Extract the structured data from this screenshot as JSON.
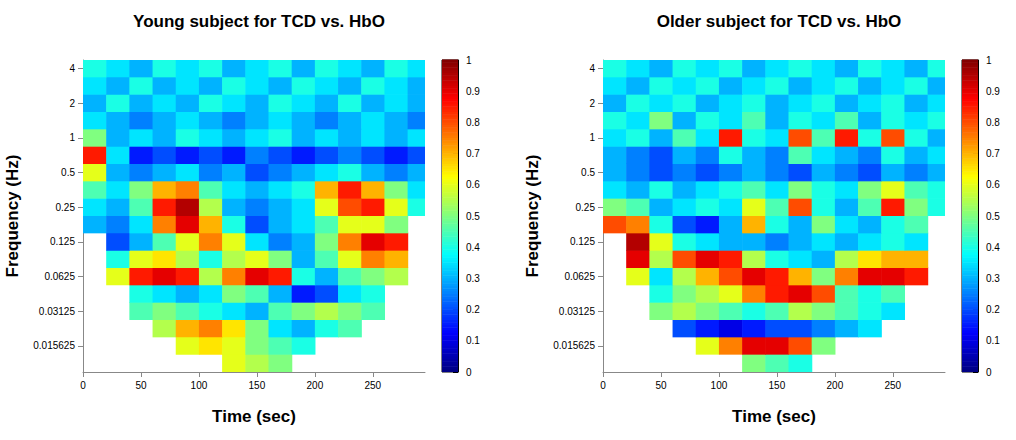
{
  "chart_data": [
    {
      "type": "heatmap",
      "title": "Young subject for TCD vs. HbO",
      "x_label": "Time (sec)",
      "y_label": "Frequency (Hz)",
      "log": "y",
      "xlim": [
        0,
        295
      ],
      "ylim": [
        0.00929,
        4.75683
      ],
      "xticks": [
        0,
        50,
        100,
        150,
        200,
        250
      ],
      "yticks": [
        0.015625,
        0.03125,
        0.0625,
        0.125,
        0.25,
        0.5,
        1,
        2,
        4
      ],
      "x_bins": [
        0,
        20,
        40,
        60,
        80,
        100,
        120,
        140,
        160,
        180,
        200,
        220,
        240,
        260,
        280,
        295
      ],
      "y_bins": [
        0.00929,
        0.01314,
        0.01858,
        0.02628,
        0.03716,
        0.05256,
        0.07433,
        0.10511,
        0.14865,
        0.21022,
        0.2973,
        0.42045,
        0.5946,
        0.8409,
        1.18921,
        1.68179,
        2.37841,
        3.36359,
        4.75683
      ],
      "cells": [
        [
          null,
          null,
          null,
          null,
          null,
          null,
          0.6,
          0.55,
          0.5,
          null,
          null,
          null,
          null,
          null,
          null
        ],
        [
          null,
          null,
          null,
          null,
          0.6,
          0.65,
          0.6,
          0.5,
          0.45,
          0.4,
          null,
          null,
          null,
          null,
          null
        ],
        [
          null,
          null,
          null,
          0.55,
          0.7,
          0.75,
          0.65,
          0.5,
          0.35,
          0.3,
          0.4,
          0.45,
          null,
          null,
          null
        ],
        [
          null,
          null,
          0.45,
          0.5,
          0.45,
          0.4,
          0.35,
          0.3,
          0.45,
          0.5,
          0.55,
          0.5,
          0.45,
          null,
          null
        ],
        [
          null,
          null,
          0.4,
          0.35,
          0.3,
          0.35,
          0.5,
          0.45,
          0.3,
          0.15,
          0.2,
          0.35,
          0.4,
          null,
          null
        ],
        [
          null,
          0.6,
          0.85,
          0.9,
          0.85,
          0.55,
          0.75,
          0.9,
          0.85,
          0.4,
          0.3,
          0.45,
          0.5,
          0.55,
          null
        ],
        [
          null,
          0.4,
          0.6,
          0.65,
          0.55,
          0.4,
          0.55,
          0.6,
          0.5,
          0.3,
          0.45,
          0.6,
          0.75,
          0.7,
          null
        ],
        [
          null,
          0.2,
          0.3,
          0.45,
          0.6,
          0.75,
          0.6,
          0.35,
          0.25,
          0.3,
          0.5,
          0.75,
          0.9,
          0.85,
          null
        ],
        [
          0.3,
          0.25,
          0.35,
          0.75,
          0.9,
          0.7,
          0.4,
          0.2,
          0.3,
          0.35,
          0.45,
          0.6,
          0.6,
          0.5,
          null
        ],
        [
          0.35,
          0.3,
          0.45,
          0.85,
          0.95,
          0.55,
          0.3,
          0.25,
          0.3,
          0.35,
          0.6,
          0.8,
          0.85,
          0.6,
          0.4
        ],
        [
          0.45,
          0.35,
          0.5,
          0.7,
          0.75,
          0.45,
          0.35,
          0.3,
          0.35,
          0.4,
          0.7,
          0.85,
          0.7,
          0.5,
          0.35
        ],
        [
          0.6,
          0.3,
          0.25,
          0.3,
          0.35,
          0.25,
          0.3,
          0.2,
          0.25,
          0.3,
          0.35,
          0.4,
          0.3,
          0.25,
          0.3
        ],
        [
          0.85,
          0.35,
          0.15,
          0.2,
          0.15,
          0.2,
          0.15,
          0.25,
          0.2,
          0.15,
          0.2,
          0.25,
          0.2,
          0.15,
          0.2
        ],
        [
          0.5,
          0.3,
          0.35,
          0.3,
          0.4,
          0.35,
          0.3,
          0.35,
          0.4,
          0.3,
          0.35,
          0.3,
          0.35,
          0.3,
          0.35
        ],
        [
          0.35,
          0.3,
          0.25,
          0.3,
          0.35,
          0.3,
          0.25,
          0.3,
          0.35,
          0.3,
          0.25,
          0.3,
          0.35,
          0.3,
          0.25
        ],
        [
          0.3,
          0.4,
          0.3,
          0.35,
          0.3,
          0.4,
          0.35,
          0.3,
          0.4,
          0.35,
          0.3,
          0.4,
          0.3,
          0.35,
          0.3
        ],
        [
          0.35,
          0.3,
          0.4,
          0.3,
          0.35,
          0.3,
          0.4,
          0.35,
          0.3,
          0.4,
          0.35,
          0.3,
          0.4,
          0.35,
          0.3
        ],
        [
          0.4,
          0.35,
          0.3,
          0.4,
          0.35,
          0.4,
          0.3,
          0.35,
          0.4,
          0.3,
          0.4,
          0.35,
          0.3,
          0.4,
          0.35
        ]
      ],
      "colorbar_range": [
        0,
        1
      ],
      "colorbar_ticks": [
        0,
        0.1,
        0.2,
        0.3,
        0.4,
        0.5,
        0.6,
        0.7,
        0.8,
        0.9,
        1
      ]
    },
    {
      "type": "heatmap",
      "title": "Older subject for TCD vs. HbO",
      "x_label": "Time (sec)",
      "y_label": "Frequency (Hz)",
      "log": "y",
      "xlim": [
        0,
        295
      ],
      "ylim": [
        0.00929,
        4.75683
      ],
      "xticks": [
        0,
        50,
        100,
        150,
        200,
        250
      ],
      "yticks": [
        0.015625,
        0.03125,
        0.0625,
        0.125,
        0.25,
        0.5,
        1,
        2,
        4
      ],
      "x_bins": [
        0,
        20,
        40,
        60,
        80,
        100,
        120,
        140,
        160,
        180,
        200,
        220,
        240,
        260,
        280,
        295
      ],
      "y_bins": [
        0.00929,
        0.01314,
        0.01858,
        0.02628,
        0.03716,
        0.05256,
        0.07433,
        0.10511,
        0.14865,
        0.21022,
        0.2973,
        0.42045,
        0.5946,
        0.8409,
        1.18921,
        1.68179,
        2.37841,
        3.36359,
        4.75683
      ],
      "cells": [
        [
          null,
          null,
          null,
          null,
          null,
          null,
          0.5,
          0.45,
          0.4,
          null,
          null,
          null,
          null,
          null,
          null
        ],
        [
          null,
          null,
          null,
          null,
          0.6,
          0.75,
          0.9,
          0.9,
          0.8,
          0.5,
          null,
          null,
          null,
          null,
          null
        ],
        [
          null,
          null,
          null,
          0.2,
          0.15,
          0.1,
          0.15,
          0.2,
          0.2,
          0.25,
          0.3,
          0.35,
          null,
          null,
          null
        ],
        [
          null,
          null,
          0.5,
          0.55,
          0.5,
          0.45,
          0.4,
          0.45,
          0.55,
          0.5,
          0.45,
          0.4,
          0.35,
          null,
          null
        ],
        [
          null,
          null,
          0.4,
          0.5,
          0.55,
          0.6,
          0.75,
          0.85,
          0.9,
          0.8,
          0.45,
          0.4,
          0.45,
          null,
          null
        ],
        [
          null,
          0.6,
          0.35,
          0.55,
          0.7,
          0.8,
          0.9,
          0.85,
          0.7,
          0.5,
          0.75,
          0.9,
          0.9,
          0.85,
          null
        ],
        [
          null,
          0.9,
          0.55,
          0.8,
          0.9,
          0.85,
          0.55,
          0.4,
          0.35,
          0.3,
          0.55,
          0.65,
          0.7,
          0.7,
          null
        ],
        [
          null,
          0.95,
          0.6,
          0.4,
          0.35,
          0.3,
          0.3,
          0.25,
          0.3,
          0.35,
          0.3,
          0.35,
          0.4,
          0.35,
          null
        ],
        [
          0.8,
          0.75,
          0.4,
          0.2,
          0.15,
          0.3,
          0.7,
          0.4,
          0.3,
          0.5,
          0.35,
          0.3,
          0.4,
          0.45,
          null
        ],
        [
          0.5,
          0.45,
          0.3,
          0.35,
          0.4,
          0.35,
          0.6,
          0.45,
          0.8,
          0.4,
          0.3,
          0.45,
          0.85,
          0.5,
          0.4
        ],
        [
          0.35,
          0.3,
          0.4,
          0.3,
          0.35,
          0.4,
          0.45,
          0.35,
          0.5,
          0.4,
          0.35,
          0.5,
          0.6,
          0.45,
          0.4
        ],
        [
          0.3,
          0.25,
          0.2,
          0.25,
          0.2,
          0.25,
          0.3,
          0.25,
          0.2,
          0.3,
          0.25,
          0.2,
          0.3,
          0.25,
          0.3
        ],
        [
          0.3,
          0.25,
          0.2,
          0.3,
          0.25,
          0.4,
          0.3,
          0.25,
          0.45,
          0.35,
          0.3,
          0.25,
          0.4,
          0.3,
          0.35
        ],
        [
          0.35,
          0.4,
          0.3,
          0.45,
          0.35,
          0.85,
          0.4,
          0.35,
          0.8,
          0.45,
          0.85,
          0.4,
          0.8,
          0.4,
          0.3
        ],
        [
          0.4,
          0.35,
          0.5,
          0.3,
          0.4,
          0.35,
          0.45,
          0.3,
          0.4,
          0.35,
          0.45,
          0.3,
          0.4,
          0.35,
          0.4
        ],
        [
          0.3,
          0.4,
          0.35,
          0.4,
          0.3,
          0.35,
          0.4,
          0.3,
          0.35,
          0.4,
          0.3,
          0.35,
          0.4,
          0.3,
          0.35
        ],
        [
          0.35,
          0.3,
          0.4,
          0.35,
          0.4,
          0.3,
          0.35,
          0.4,
          0.3,
          0.35,
          0.4,
          0.3,
          0.35,
          0.4,
          0.3
        ],
        [
          0.4,
          0.35,
          0.3,
          0.4,
          0.35,
          0.4,
          0.3,
          0.35,
          0.4,
          0.35,
          0.3,
          0.4,
          0.35,
          0.3,
          0.4
        ]
      ],
      "colorbar_range": [
        0,
        1
      ],
      "colorbar_ticks": [
        0,
        0.1,
        0.2,
        0.3,
        0.4,
        0.5,
        0.6,
        0.7,
        0.8,
        0.9,
        1
      ]
    }
  ]
}
